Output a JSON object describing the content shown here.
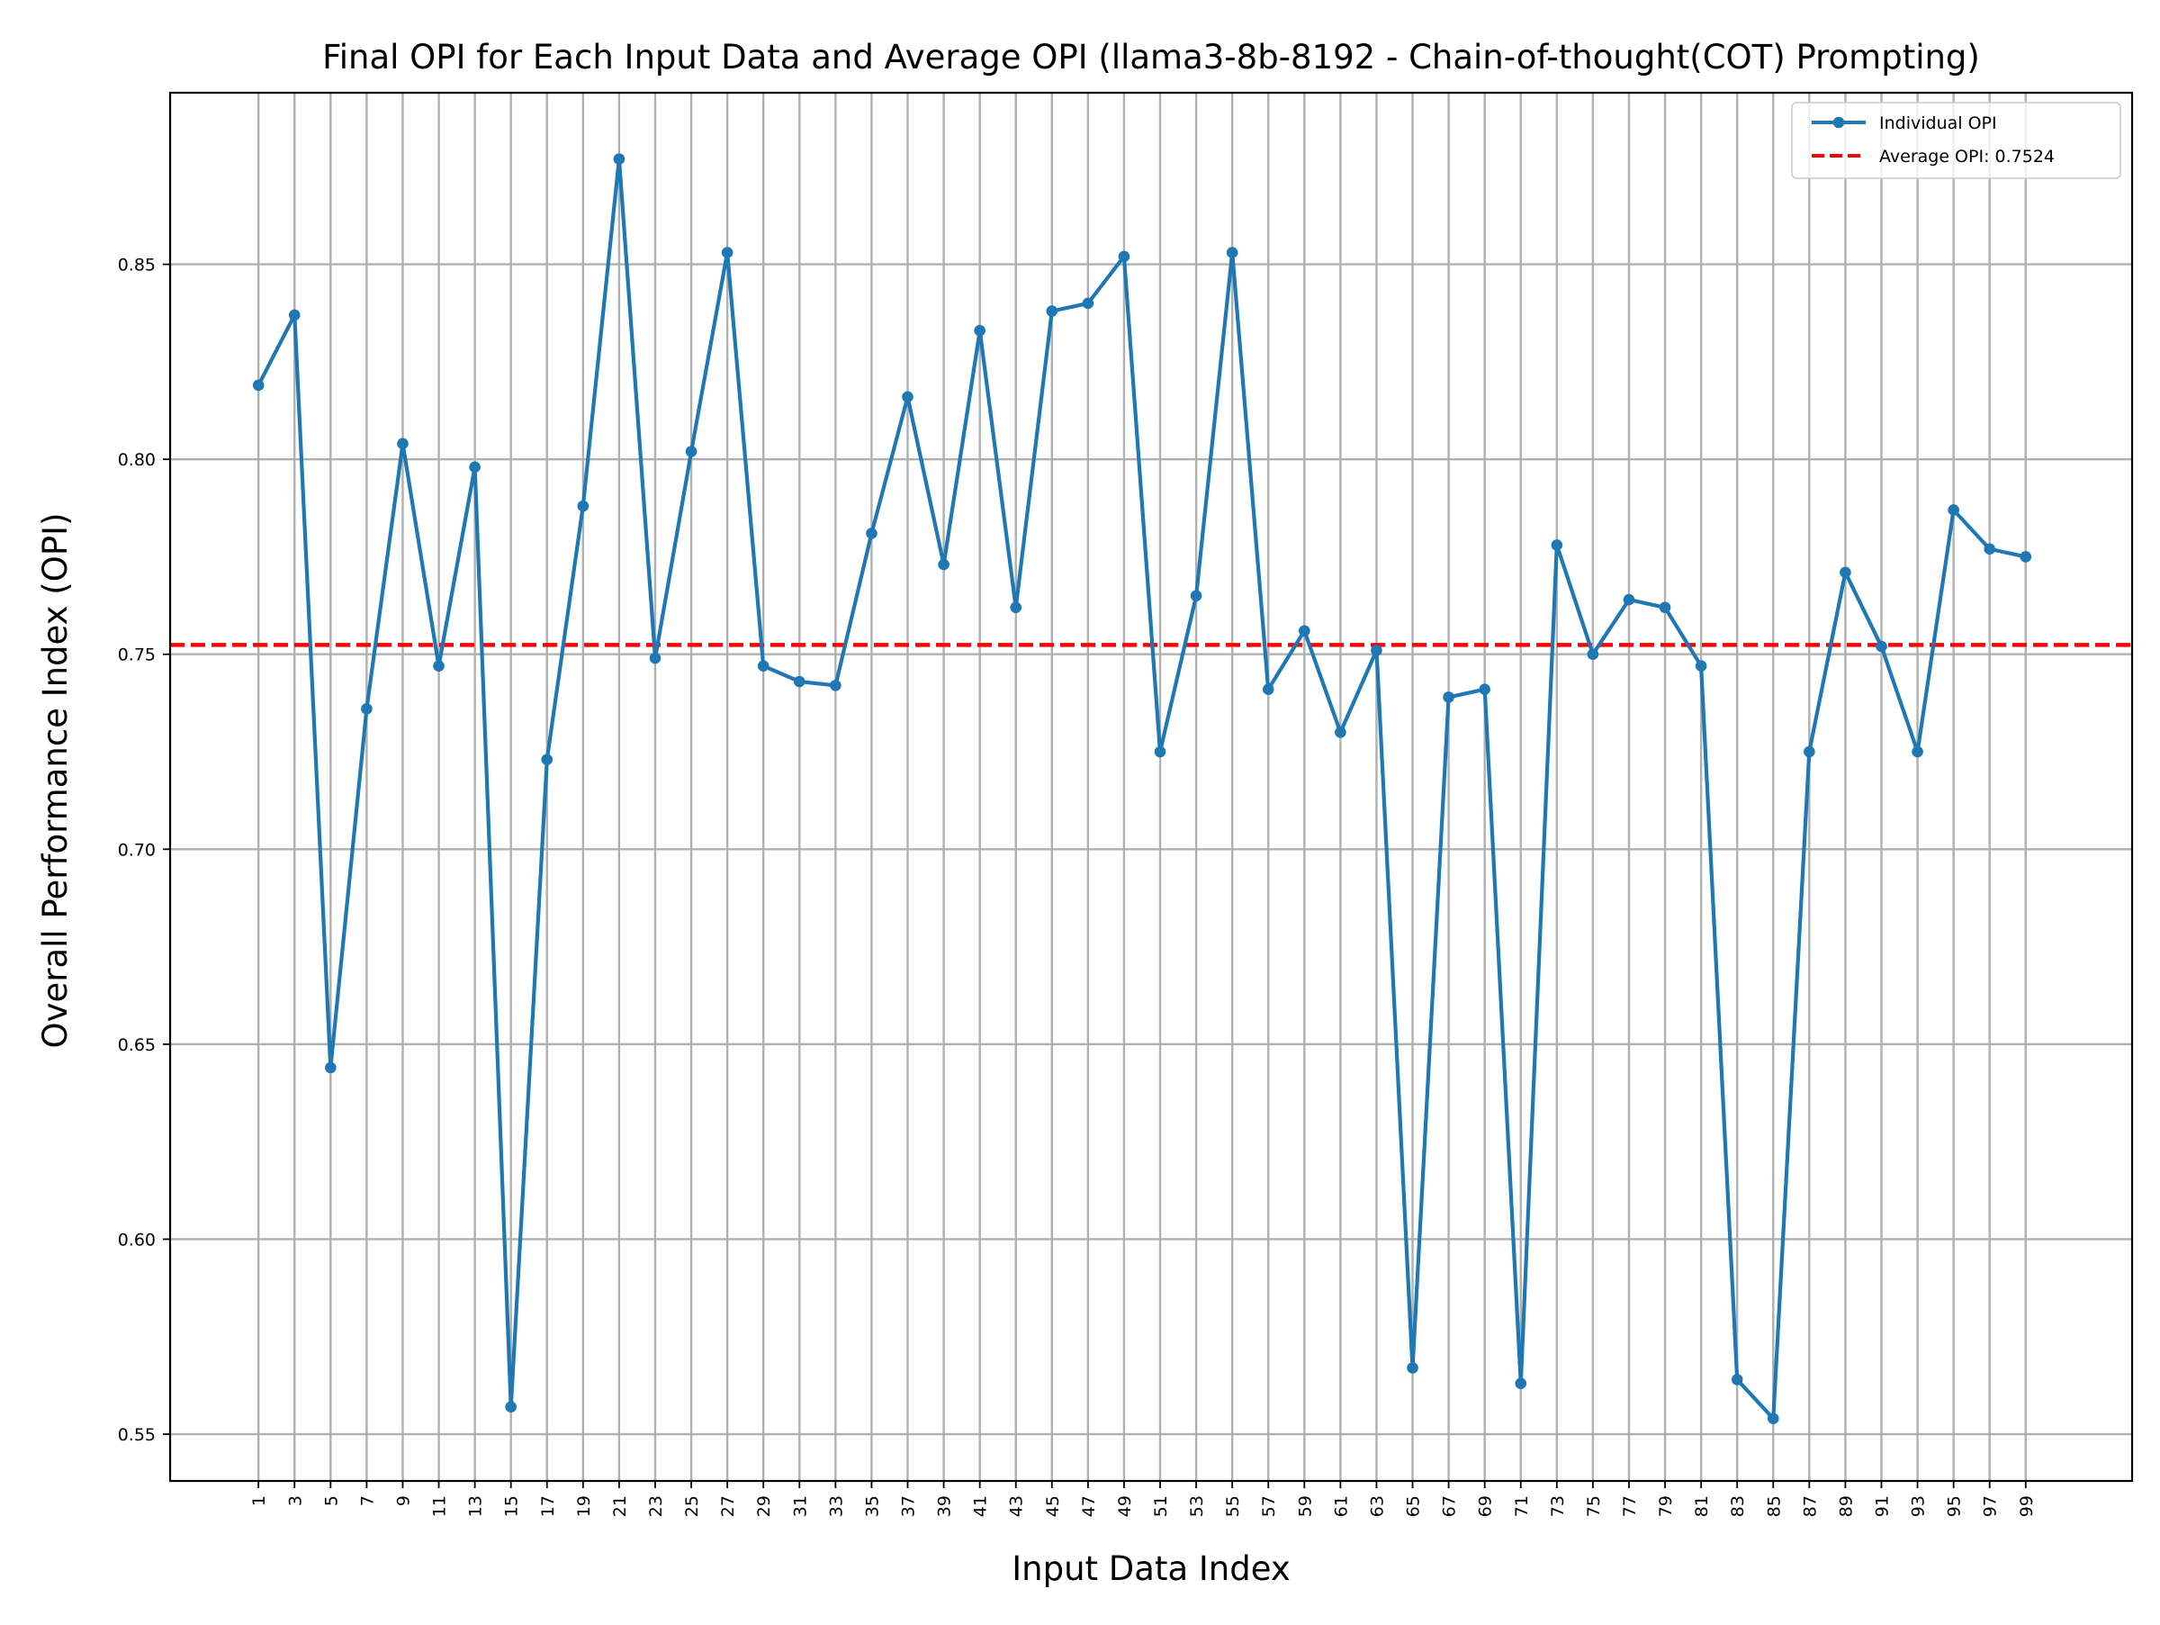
{
  "chart_data": {
    "type": "line",
    "title": "Final OPI for Each Input Data and Average OPI (llama3-8b-8192 - Chain-of-thought(COT) Prompting)",
    "xlabel": "Input Data Index",
    "ylabel": "Overall Performance Index (OPI)",
    "x": [
      1,
      3,
      5,
      7,
      9,
      11,
      13,
      15,
      17,
      19,
      21,
      23,
      25,
      27,
      29,
      31,
      33,
      35,
      37,
      39,
      41,
      43,
      45,
      47,
      49,
      51,
      53,
      55,
      57,
      59,
      61,
      63,
      65,
      67,
      69,
      71,
      73,
      75,
      77,
      79,
      81,
      83,
      85,
      87,
      89,
      91,
      93,
      95,
      97,
      99
    ],
    "xticks": [
      "1",
      "3",
      "5",
      "7",
      "9",
      "11",
      "13",
      "15",
      "17",
      "19",
      "21",
      "23",
      "25",
      "27",
      "29",
      "31",
      "33",
      "35",
      "37",
      "39",
      "41",
      "43",
      "45",
      "47",
      "49",
      "51",
      "53",
      "55",
      "57",
      "59",
      "61",
      "63",
      "65",
      "67",
      "69",
      "71",
      "73",
      "75",
      "77",
      "79",
      "81",
      "83",
      "85",
      "87",
      "89",
      "91",
      "93",
      "95",
      "97",
      "99"
    ],
    "yticks": [
      "0.55",
      "0.60",
      "0.65",
      "0.70",
      "0.75",
      "0.80",
      "0.85"
    ],
    "ytick_values": [
      0.55,
      0.6,
      0.65,
      0.7,
      0.75,
      0.8,
      0.85
    ],
    "xlim": [
      -3.9,
      104.9
    ],
    "ylim": [
      0.538,
      0.894
    ],
    "grid": true,
    "legend_position": "top-right",
    "series": [
      {
        "name": "Individual OPI",
        "color": "#1f77b4",
        "style": "solid",
        "marker": "circle",
        "values": [
          0.819,
          0.837,
          0.644,
          0.736,
          0.804,
          0.747,
          0.798,
          0.557,
          0.723,
          0.788,
          0.877,
          0.749,
          0.802,
          0.853,
          0.747,
          0.743,
          0.742,
          0.781,
          0.816,
          0.773,
          0.833,
          0.762,
          0.838,
          0.84,
          0.852,
          0.725,
          0.765,
          0.853,
          0.741,
          0.756,
          0.73,
          0.751,
          0.567,
          0.739,
          0.741,
          0.563,
          0.778,
          0.75,
          0.764,
          0.762,
          0.747,
          0.564,
          0.554,
          0.725,
          0.771,
          0.752,
          0.725,
          0.787,
          0.777,
          0.775
        ]
      }
    ],
    "reference_lines": [
      {
        "name": "Average OPI: 0.7524",
        "value": 0.7524,
        "color": "#ff0000",
        "style": "dashed"
      }
    ]
  }
}
